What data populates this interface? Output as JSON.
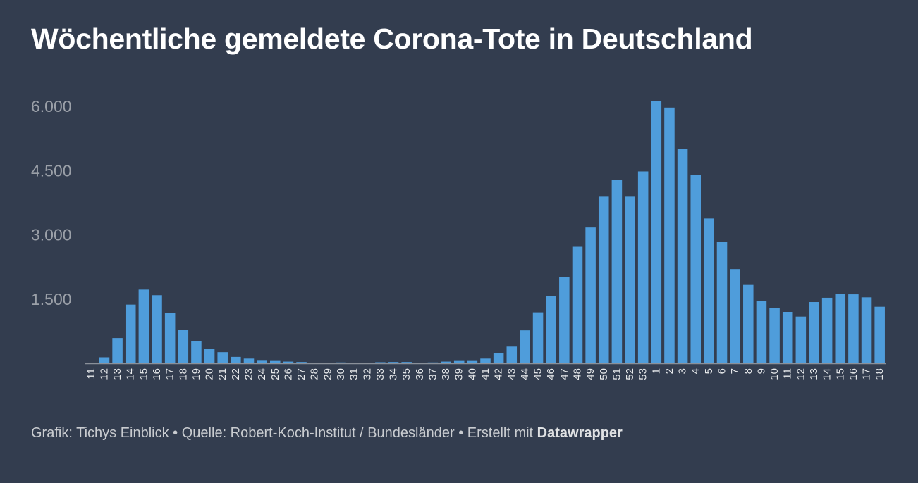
{
  "title": "Wöchentliche gemeldete Corona-Tote in Deutschland",
  "footer": {
    "credit": "Grafik: Tichys Einblick",
    "separator": "•",
    "source": "Quelle: Robert-Koch-Institut / Bundesländer",
    "made_with_prefix": "Erstellt mit",
    "made_with_tool": "Datawrapper"
  },
  "colors": {
    "background": "#333d4f",
    "bar": "#4f9ddb",
    "title": "#ffffff",
    "axis_tick": "#9ba0a8",
    "category_label": "#e6e8ea",
    "baseline": "#8a9099"
  },
  "chart_data": {
    "type": "bar",
    "title": "Wöchentliche gemeldete Corona-Tote in Deutschland",
    "xlabel": "",
    "ylabel": "",
    "ylim": [
      0,
      6000
    ],
    "yticks": [
      1500,
      3000,
      4500,
      6000
    ],
    "ytick_labels": [
      "1.500",
      "3.000",
      "4.500",
      "6.000"
    ],
    "grid": false,
    "legend": "none",
    "categories": [
      "11",
      "12",
      "13",
      "14",
      "15",
      "16",
      "17",
      "18",
      "19",
      "20",
      "21",
      "22",
      "23",
      "24",
      "25",
      "26",
      "27",
      "28",
      "29",
      "30",
      "31",
      "32",
      "33",
      "34",
      "35",
      "36",
      "37",
      "38",
      "39",
      "40",
      "41",
      "42",
      "43",
      "44",
      "45",
      "46",
      "47",
      "48",
      "49",
      "50",
      "51",
      "52",
      "53",
      "1",
      "2",
      "3",
      "4",
      "5",
      "6",
      "7",
      "8",
      "9",
      "10",
      "11",
      "12",
      "13",
      "14",
      "15",
      "16",
      "17",
      "18"
    ],
    "values": [
      5,
      140,
      590,
      1370,
      1720,
      1590,
      1170,
      780,
      510,
      340,
      260,
      150,
      110,
      60,
      55,
      40,
      30,
      10,
      5,
      20,
      5,
      5,
      25,
      30,
      30,
      10,
      20,
      40,
      55,
      55,
      110,
      230,
      390,
      770,
      1190,
      1570,
      2020,
      2720,
      3170,
      3890,
      4280,
      3890,
      4480,
      6130,
      5970,
      5010,
      4390,
      3380,
      2840,
      2200,
      1830,
      1460,
      1290,
      1200,
      1090,
      1430,
      1530,
      1620,
      1610,
      1540,
      1320
    ]
  }
}
